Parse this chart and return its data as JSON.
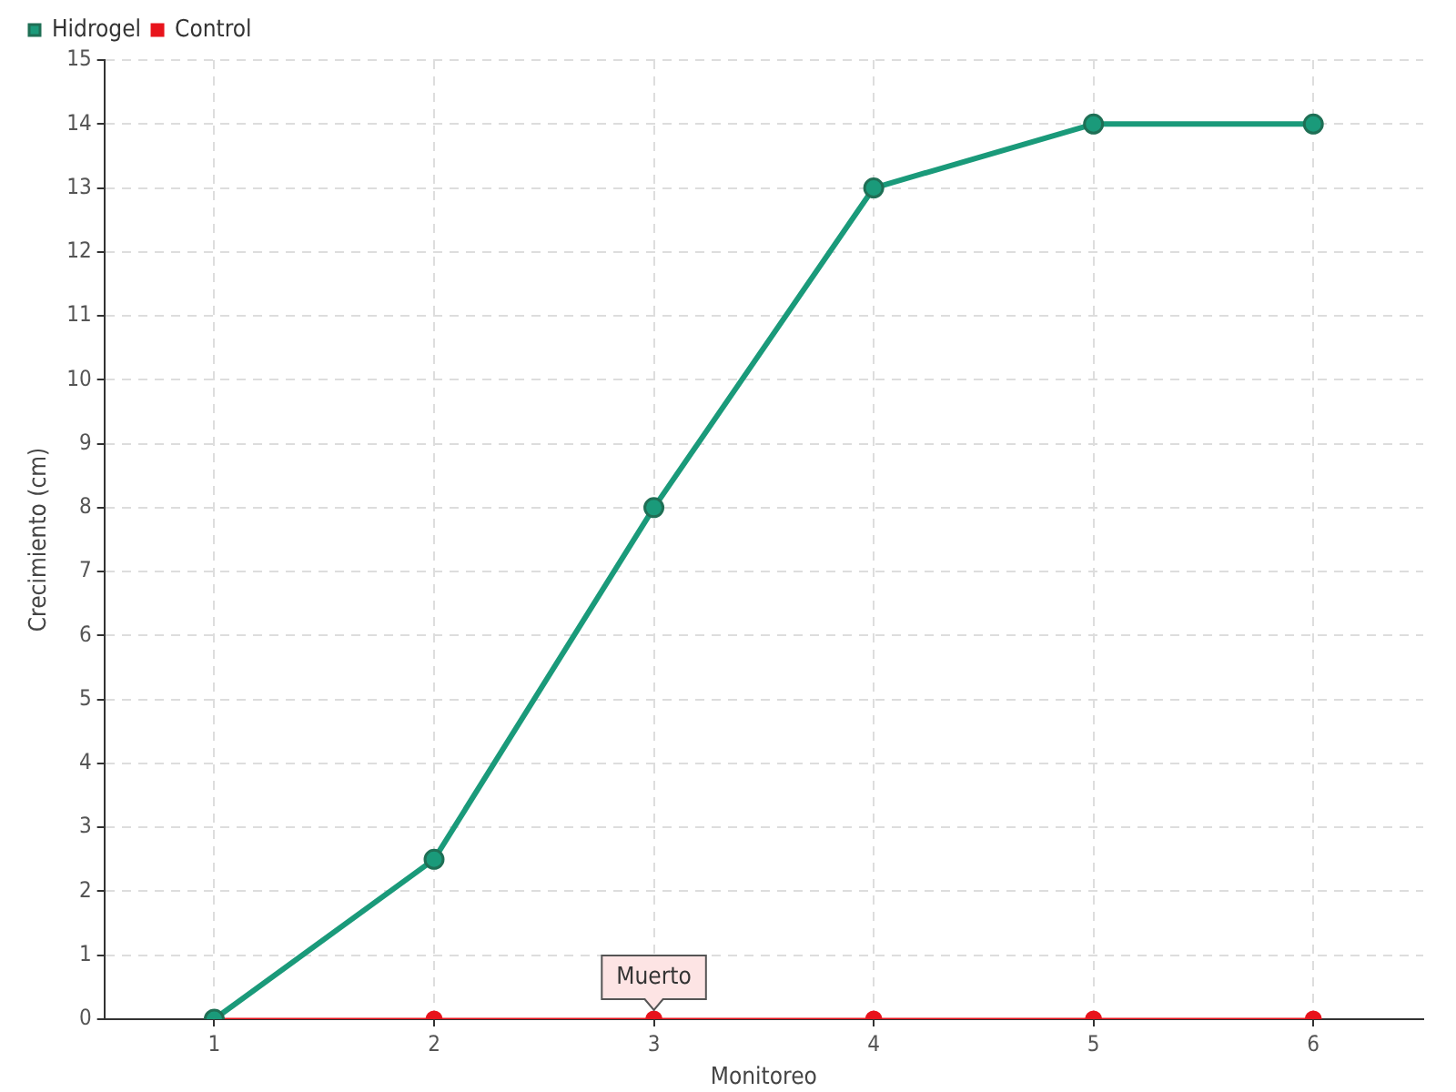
{
  "chart_data": {
    "type": "line",
    "xlabel": "Monitoreo",
    "ylabel": "Crecimiento (cm)",
    "categories": [
      "1",
      "2",
      "3",
      "4",
      "5",
      "6"
    ],
    "series": [
      {
        "name": "Hidrogel",
        "color": "#1a9a7a",
        "values": [
          0,
          2.5,
          8,
          13,
          14,
          14
        ]
      },
      {
        "name": "Control",
        "color": "#e8141c",
        "values": [
          0,
          0,
          0,
          0,
          0,
          0
        ]
      }
    ],
    "ylim": [
      0,
      15
    ],
    "yticks": [
      0,
      1,
      2,
      3,
      4,
      5,
      6,
      7,
      8,
      9,
      10,
      11,
      12,
      13,
      14,
      15
    ],
    "grid": true,
    "legend": "top left",
    "marker": "circle",
    "line_style": "solid",
    "annotations": [
      {
        "text": "Muerto",
        "x": "3",
        "y": 0
      }
    ]
  }
}
